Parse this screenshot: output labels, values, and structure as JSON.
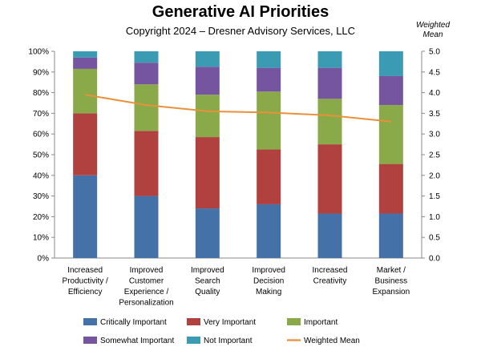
{
  "chart_data": {
    "type": "bar",
    "stacked": true,
    "title": "Generative AI Priorities",
    "subtitle": "Copyright 2024 – Dresner Advisory Services, LLC",
    "y2label_lines": [
      "Weighted",
      "Mean"
    ],
    "categories": [
      [
        "Increased",
        "Productivity /",
        "Efficiency"
      ],
      [
        "Improved",
        "Customer",
        "Experience /",
        "Personalization"
      ],
      [
        "Improved",
        "Search",
        "Quality"
      ],
      [
        "Improved",
        "Decision",
        "Making"
      ],
      [
        "Increased",
        "Creativity"
      ],
      [
        "Market /",
        "Business",
        "Expansion"
      ]
    ],
    "ylim": [
      0,
      100
    ],
    "yticks": [
      "0%",
      "10%",
      "20%",
      "30%",
      "40%",
      "50%",
      "60%",
      "70%",
      "80%",
      "90%",
      "100%"
    ],
    "y2lim": [
      0,
      5
    ],
    "y2ticks": [
      "0.0",
      "0.5",
      "1.0",
      "1.5",
      "2.0",
      "2.5",
      "3.0",
      "3.5",
      "4.0",
      "4.5",
      "5.0"
    ],
    "series": [
      {
        "name": "Critically Important",
        "color": "#4472A8",
        "values": [
          40,
          30,
          24,
          26,
          21.5,
          21.5
        ]
      },
      {
        "name": "Very Important",
        "color": "#B0413E",
        "values": [
          30,
          31.5,
          34.5,
          26.5,
          33.5,
          24
        ]
      },
      {
        "name": "Important",
        "color": "#8AAA4A",
        "values": [
          21.5,
          22.5,
          20.5,
          28,
          22,
          28.5
        ]
      },
      {
        "name": "Somewhat Important",
        "color": "#7555A0",
        "values": [
          5.5,
          10.5,
          13.5,
          11.5,
          15,
          14
        ]
      },
      {
        "name": "Not Important",
        "color": "#3A9BB2",
        "values": [
          3,
          5.5,
          7.5,
          8,
          8,
          12
        ]
      }
    ],
    "line": {
      "name": "Weighted Mean",
      "color": "#E8913A",
      "values": [
        3.95,
        3.7,
        3.55,
        3.52,
        3.45,
        3.3
      ]
    },
    "legend_position": "bottom",
    "grid": false
  }
}
